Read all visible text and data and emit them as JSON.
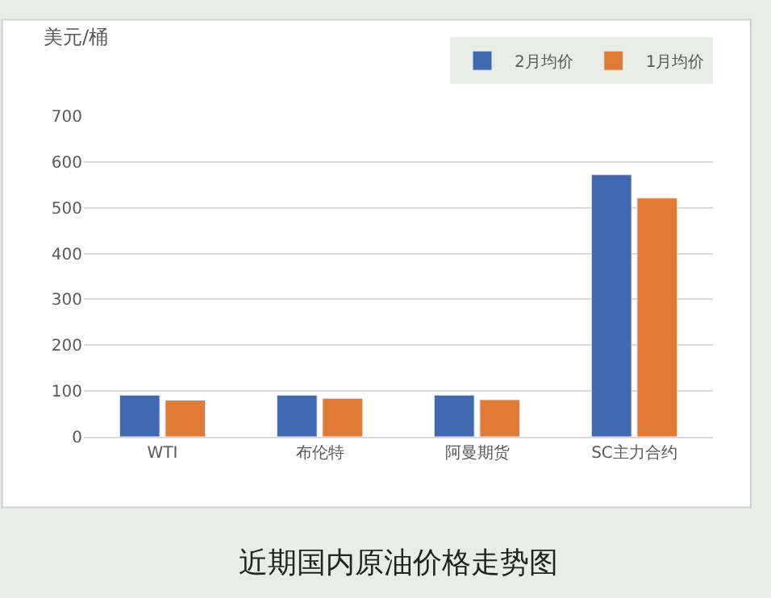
{
  "chart_data": {
    "type": "bar",
    "ylabel": "美元/桶",
    "categories": [
      "WTI",
      "布伦特",
      "阿曼期货",
      "SC主力合约"
    ],
    "series": [
      {
        "name": "2月均价",
        "color": "#4169b0",
        "values": [
          91,
          91,
          91,
          572
        ]
      },
      {
        "name": "1月均价",
        "color": "#e07a35",
        "values": [
          80,
          84,
          81,
          521
        ]
      }
    ],
    "ylim": [
      0,
      700
    ],
    "yticks": [
      0,
      100,
      200,
      300,
      400,
      500,
      600,
      700
    ],
    "grid": "y",
    "legend": "top right",
    "annotations": [
      "近期国内原油价格走势图"
    ]
  }
}
